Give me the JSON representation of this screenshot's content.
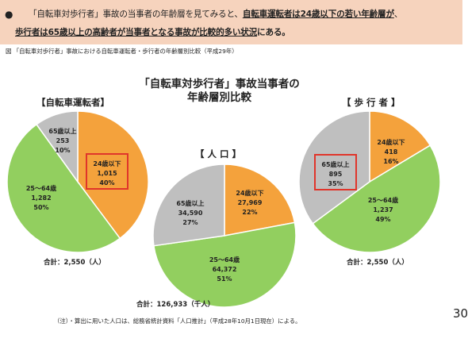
{
  "banner": {
    "bullet": "●",
    "line1": [
      {
        "text": "「自転車対歩行者」事故の当事者の年齢層を見てみると、",
        "style": "normal"
      },
      {
        "text": "自転車運転者は24歳以下の若い年齢層が",
        "style": "underline"
      },
      {
        "text": "、",
        "style": "normal"
      }
    ],
    "line2": [
      {
        "text": "歩行者は65歳以上の高齢者が当事者となる事故が比較的多い状況",
        "style": "underline"
      },
      {
        "text": "にある。",
        "style": "normal"
      }
    ]
  },
  "caption": "図 「自転車対歩行者」事故における自転車運転者・歩行者の年齢層別比較（平成29年）",
  "chart_title_line1": "「自転車対歩行者」事故当事者の",
  "chart_title_line2": "年齢層別比較",
  "note": "（注）・算出に用いた人口は、総務省統計資料「人口推計」（平成28年10月1日現在）による。",
  "page_number": "30",
  "colors": {
    "under24": "#f4a23c",
    "age25_64": "#92cf5f",
    "over65": "#bfbfbf",
    "highlight": "#e0352b",
    "banner": "#f6d3bd"
  },
  "chart_data": [
    {
      "type": "pie",
      "title": "【自転車運転者】",
      "total_label": "合計：2,550（人）",
      "slices": [
        {
          "label": "24歳以下",
          "value": 1015,
          "value_text": "1,015",
          "percent": "40%",
          "color": "#f4a23c",
          "highlight": true
        },
        {
          "label": "25～64歳",
          "value": 1282,
          "value_text": "1,282",
          "percent": "50%",
          "color": "#92cf5f",
          "highlight": false
        },
        {
          "label": "65歳以上",
          "value": 253,
          "value_text": "253",
          "percent": "10%",
          "color": "#bfbfbf",
          "highlight": false
        }
      ]
    },
    {
      "type": "pie",
      "title": "【 人 口 】",
      "total_label": "合計：126,933（千人）",
      "slices": [
        {
          "label": "24歳以下",
          "value": 27969,
          "value_text": "27,969",
          "percent": "22%",
          "color": "#f4a23c",
          "highlight": false
        },
        {
          "label": "25～64歳",
          "value": 64372,
          "value_text": "64,372",
          "percent": "51%",
          "color": "#92cf5f",
          "highlight": false
        },
        {
          "label": "65歳以上",
          "value": 34590,
          "value_text": "34,590",
          "percent": "27%",
          "color": "#bfbfbf",
          "highlight": false
        }
      ]
    },
    {
      "type": "pie",
      "title": "【 歩 行 者 】",
      "total_label": "合計：2,550（人）",
      "slices": [
        {
          "label": "24歳以下",
          "value": 418,
          "value_text": "418",
          "percent": "16%",
          "color": "#f4a23c",
          "highlight": false
        },
        {
          "label": "25～64歳",
          "value": 1237,
          "value_text": "1,237",
          "percent": "49%",
          "color": "#92cf5f",
          "highlight": false
        },
        {
          "label": "65歳以上",
          "value": 895,
          "value_text": "895",
          "percent": "35%",
          "color": "#bfbfbf",
          "highlight": true
        }
      ]
    }
  ]
}
